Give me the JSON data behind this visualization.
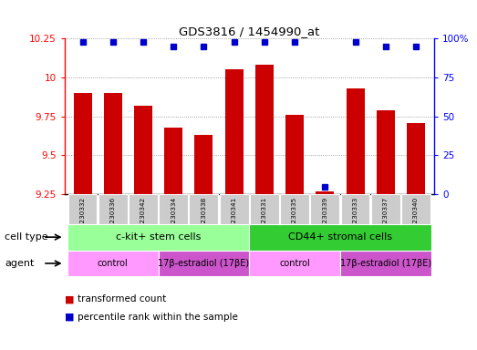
{
  "title": "GDS3816 / 1454990_at",
  "samples": [
    "GSM230332",
    "GSM230336",
    "GSM230342",
    "GSM230334",
    "GSM230338",
    "GSM230341",
    "GSM230331",
    "GSM230335",
    "GSM230339",
    "GSM230333",
    "GSM230337",
    "GSM230340"
  ],
  "bar_values": [
    9.9,
    9.9,
    9.82,
    9.68,
    9.63,
    10.05,
    10.08,
    9.76,
    9.27,
    9.93,
    9.79,
    9.71
  ],
  "percentile_values": [
    98,
    98,
    98,
    95,
    95,
    98,
    98,
    98,
    5,
    98,
    95,
    95
  ],
  "ylim": [
    9.25,
    10.25
  ],
  "yticks": [
    9.25,
    9.5,
    9.75,
    10.0,
    10.25
  ],
  "ytick_labels": [
    "9.25",
    "9.5",
    "9.75",
    "10",
    "10.25"
  ],
  "right_yticks": [
    0,
    25,
    50,
    75,
    100
  ],
  "right_ytick_labels": [
    "0",
    "25",
    "50",
    "75",
    "100%"
  ],
  "right_ylim": [
    0,
    100
  ],
  "bar_color": "#cc0000",
  "dot_color": "#0000cc",
  "bar_width": 0.6,
  "cell_type_groups": [
    {
      "label": "c-kit+ stem cells",
      "start": 0,
      "end": 5,
      "color": "#99ff99"
    },
    {
      "label": "CD44+ stromal cells",
      "start": 6,
      "end": 11,
      "color": "#33cc33"
    }
  ],
  "agent_groups": [
    {
      "label": "control",
      "start": 0,
      "end": 2,
      "color": "#ff99ff"
    },
    {
      "label": "17β-estradiol (17βE)",
      "start": 3,
      "end": 5,
      "color": "#cc55cc"
    },
    {
      "label": "control",
      "start": 6,
      "end": 8,
      "color": "#ff99ff"
    },
    {
      "label": "17β-estradiol (17βE)",
      "start": 9,
      "end": 11,
      "color": "#cc55cc"
    }
  ],
  "legend_red_label": "transformed count",
  "legend_blue_label": "percentile rank within the sample",
  "cell_type_label": "cell type",
  "agent_label": "agent",
  "background_color": "#ffffff",
  "grid_color": "#888888",
  "spine_color": "#000000"
}
